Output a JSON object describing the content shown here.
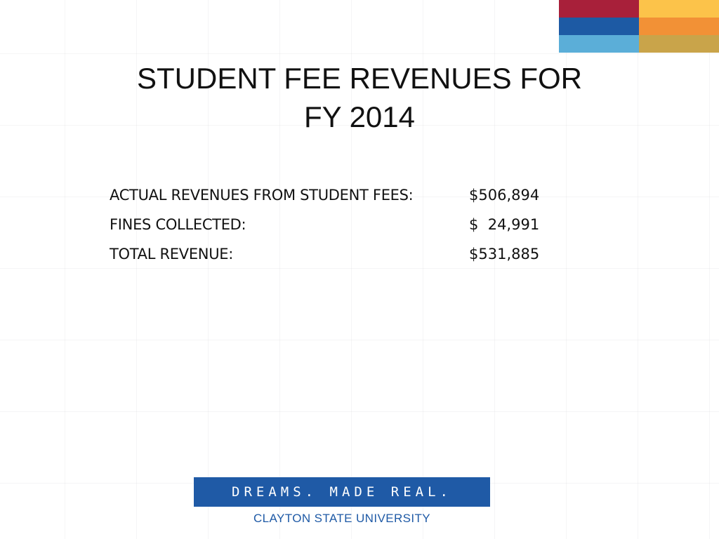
{
  "title": {
    "line1": "STUDENT FEE REVENUES FOR",
    "line2": "FY 2014"
  },
  "revenue_rows": [
    {
      "label": "ACTUAL REVENUES FROM STUDENT FEES:",
      "value": "$506,894"
    },
    {
      "label": "FINES COLLECTED:",
      "value": "$  24,991"
    },
    {
      "label": "TOTAL REVENUE:",
      "value": "$531,885"
    }
  ],
  "logo": {
    "tagline": "DREAMS. MADE REAL.",
    "university": "CLAYTON STATE UNIVERSITY"
  },
  "colors": {
    "color_blocks": [
      "#a8203a",
      "#fcc34a",
      "#1d5aa4",
      "#f29136",
      "#5baed8",
      "#c9a44a"
    ],
    "brand_blue": "#1f5aa6"
  }
}
